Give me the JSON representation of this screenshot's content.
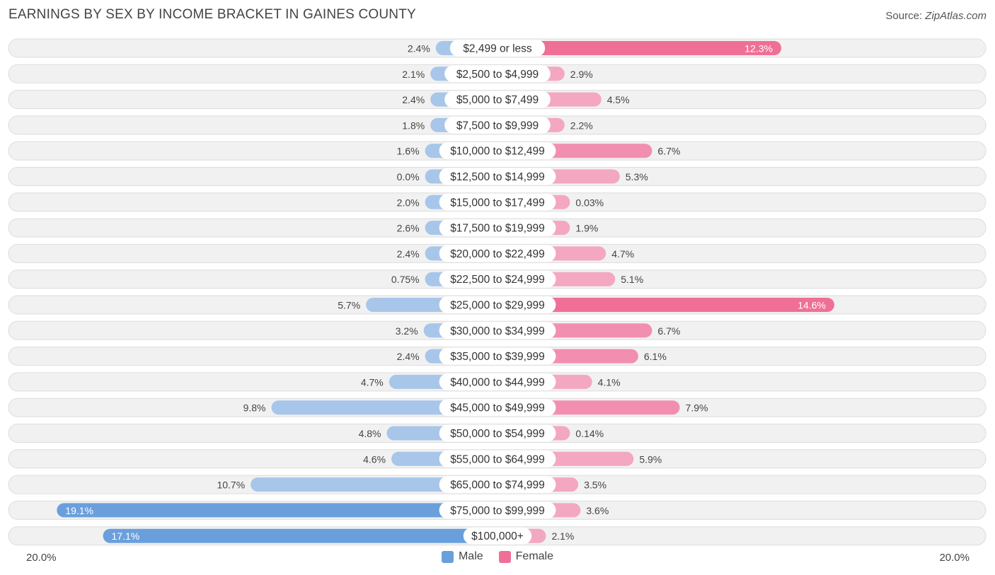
{
  "title": "EARNINGS BY SEX BY INCOME BRACKET IN GAINES COUNTY",
  "source": {
    "label": "Source: ",
    "name": "ZipAtlas.com"
  },
  "colors": {
    "male": "#6a9fdc",
    "male_light": "#a7c6ea",
    "female": "#ef6f97",
    "female_light": "#f4a7c1",
    "row_bg": "#f1f1f1",
    "row_border": "#dddddd"
  },
  "chart_data": {
    "type": "bar",
    "orientation": "horizontal-diverging",
    "title": "EARNINGS BY SEX BY INCOME BRACKET IN GAINES COUNTY",
    "axis_min_label": "20.0%",
    "axis_max_label": "20.0%",
    "xlim": [
      -20,
      20
    ],
    "categories": [
      "$2,499 or less",
      "$2,500 to $4,999",
      "$5,000 to $7,499",
      "$7,500 to $9,999",
      "$10,000 to $12,499",
      "$12,500 to $14,999",
      "$15,000 to $17,499",
      "$17,500 to $19,999",
      "$20,000 to $22,499",
      "$22,500 to $24,999",
      "$25,000 to $29,999",
      "$30,000 to $34,999",
      "$35,000 to $39,999",
      "$40,000 to $44,999",
      "$45,000 to $49,999",
      "$50,000 to $54,999",
      "$55,000 to $64,999",
      "$65,000 to $74,999",
      "$75,000 to $99,999",
      "$100,000+"
    ],
    "series": [
      {
        "name": "Male",
        "values": [
          2.4,
          2.1,
          2.4,
          1.8,
          1.6,
          0.0,
          2.0,
          2.6,
          2.4,
          0.75,
          5.7,
          3.2,
          2.4,
          4.7,
          9.8,
          4.8,
          4.6,
          10.7,
          19.1,
          17.1
        ],
        "labels": [
          "2.4%",
          "2.1%",
          "2.4%",
          "1.8%",
          "1.6%",
          "0.0%",
          "2.0%",
          "2.6%",
          "2.4%",
          "0.75%",
          "5.7%",
          "3.2%",
          "2.4%",
          "4.7%",
          "9.8%",
          "4.8%",
          "4.6%",
          "10.7%",
          "19.1%",
          "17.1%"
        ]
      },
      {
        "name": "Female",
        "values": [
          12.3,
          2.9,
          4.5,
          2.2,
          6.7,
          5.3,
          0.03,
          1.9,
          4.7,
          5.1,
          14.6,
          6.7,
          6.1,
          4.1,
          7.9,
          0.14,
          5.9,
          3.5,
          3.6,
          2.1
        ],
        "labels": [
          "12.3%",
          "2.9%",
          "4.5%",
          "2.2%",
          "6.7%",
          "5.3%",
          "0.03%",
          "1.9%",
          "4.7%",
          "5.1%",
          "14.6%",
          "6.7%",
          "6.1%",
          "4.1%",
          "7.9%",
          "0.14%",
          "5.9%",
          "3.5%",
          "3.6%",
          "2.1%"
        ]
      }
    ],
    "legend": [
      "Male",
      "Female"
    ]
  }
}
